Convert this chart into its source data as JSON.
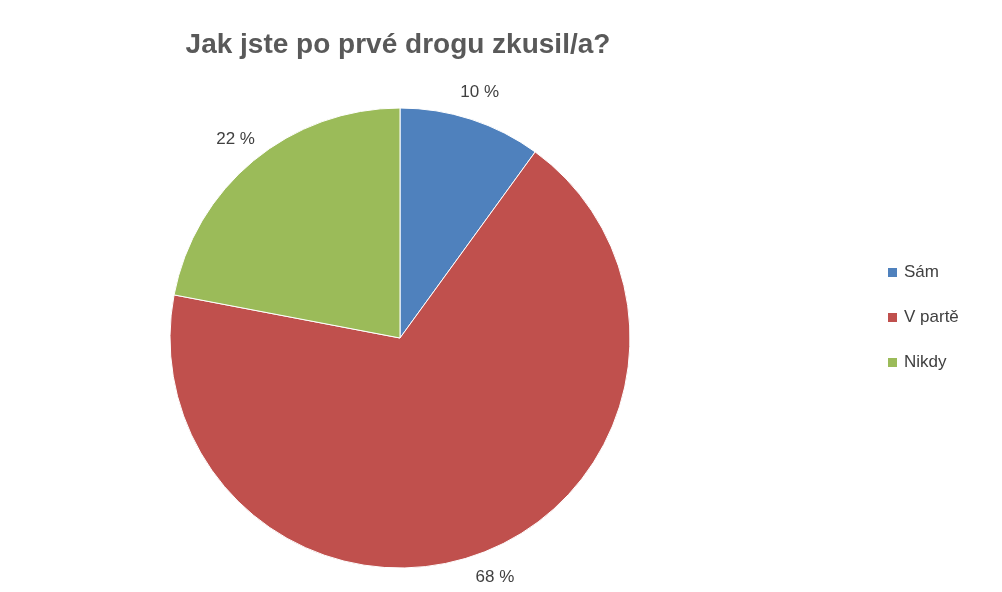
{
  "chart_data": {
    "type": "pie",
    "title": "Jak jste po prvé drogu zkusil/a?",
    "categories": [
      "Sám",
      "V partě",
      "Nikdy"
    ],
    "values": [
      10,
      68,
      22
    ],
    "colors": [
      "#4f81bd",
      "#c0504d",
      "#9bbb59"
    ],
    "value_labels": [
      "10 %",
      "68 %",
      "22 %"
    ],
    "legend": "right"
  }
}
